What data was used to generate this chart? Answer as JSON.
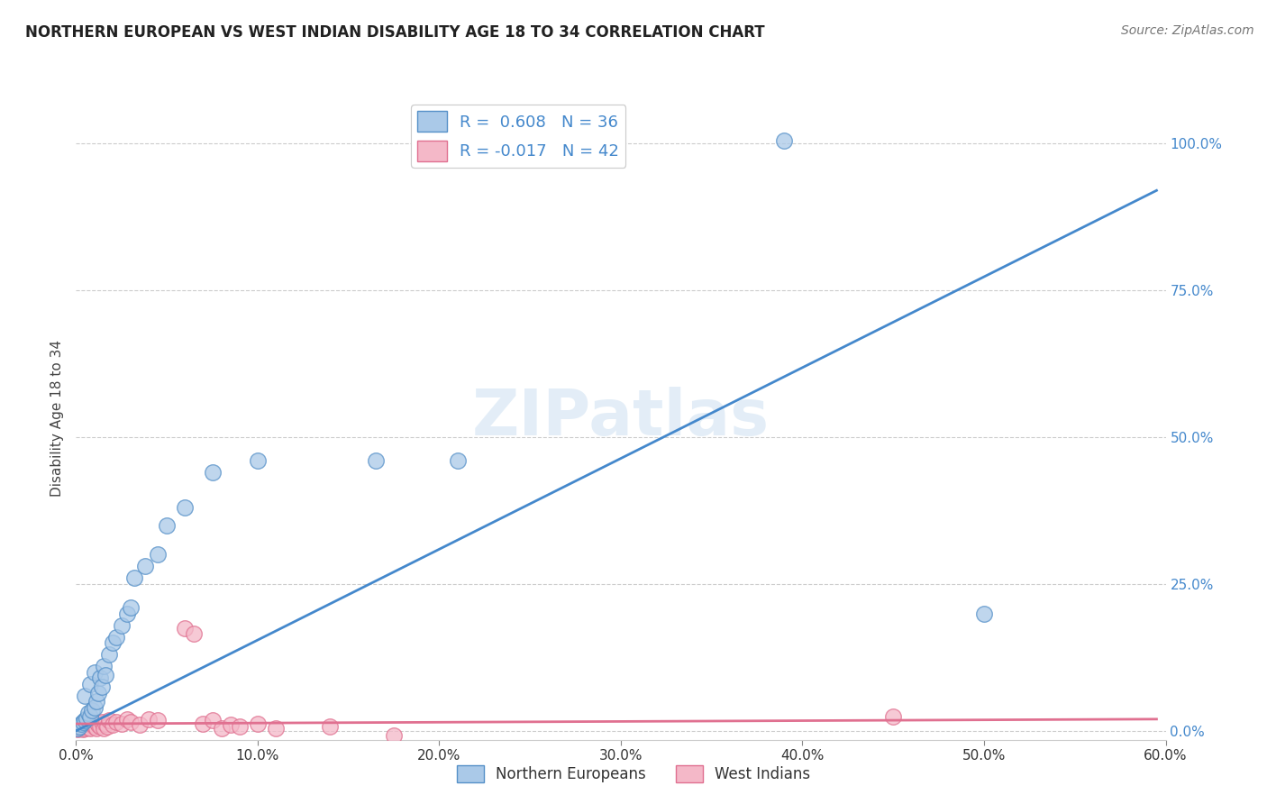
{
  "title": "NORTHERN EUROPEAN VS WEST INDIAN DISABILITY AGE 18 TO 34 CORRELATION CHART",
  "source": "Source: ZipAtlas.com",
  "ylabel": "Disability Age 18 to 34",
  "xlim": [
    0.0,
    0.6
  ],
  "ylim": [
    -0.015,
    1.08
  ],
  "xtick_labels": [
    "0.0%",
    "10.0%",
    "20.0%",
    "30.0%",
    "40.0%",
    "50.0%",
    "60.0%"
  ],
  "xtick_vals": [
    0.0,
    0.1,
    0.2,
    0.3,
    0.4,
    0.5,
    0.6
  ],
  "ytick_labels": [
    "0.0%",
    "25.0%",
    "50.0%",
    "75.0%",
    "100.0%"
  ],
  "ytick_vals": [
    0.0,
    0.25,
    0.5,
    0.75,
    1.0
  ],
  "watermark": "ZIPatlas",
  "legend_blue_label": "Northern Europeans",
  "legend_pink_label": "West Indians",
  "R_blue": 0.608,
  "N_blue": 36,
  "R_pink": -0.017,
  "N_pink": 42,
  "blue_color": "#aac9e8",
  "pink_color": "#f4b8c8",
  "blue_edge_color": "#5590c8",
  "pink_edge_color": "#e07090",
  "blue_line_color": "#4488cc",
  "pink_line_color": "#e07090",
  "grid_color": "#cccccc",
  "blue_scatter_x": [
    0.001,
    0.002,
    0.003,
    0.004,
    0.005,
    0.005,
    0.006,
    0.007,
    0.008,
    0.008,
    0.009,
    0.01,
    0.01,
    0.011,
    0.012,
    0.013,
    0.014,
    0.015,
    0.016,
    0.018,
    0.02,
    0.022,
    0.025,
    0.028,
    0.03,
    0.032,
    0.038,
    0.045,
    0.05,
    0.06,
    0.075,
    0.1,
    0.165,
    0.21,
    0.5,
    0.39
  ],
  "blue_scatter_y": [
    0.005,
    0.008,
    0.012,
    0.015,
    0.018,
    0.06,
    0.022,
    0.03,
    0.025,
    0.08,
    0.035,
    0.04,
    0.1,
    0.05,
    0.065,
    0.09,
    0.075,
    0.11,
    0.095,
    0.13,
    0.15,
    0.16,
    0.18,
    0.2,
    0.21,
    0.26,
    0.28,
    0.3,
    0.35,
    0.38,
    0.44,
    0.46,
    0.46,
    0.46,
    0.2,
    1.005
  ],
  "pink_scatter_x": [
    0.001,
    0.002,
    0.003,
    0.004,
    0.004,
    0.005,
    0.006,
    0.006,
    0.007,
    0.008,
    0.008,
    0.009,
    0.01,
    0.011,
    0.011,
    0.012,
    0.013,
    0.014,
    0.015,
    0.016,
    0.017,
    0.018,
    0.02,
    0.022,
    0.025,
    0.028,
    0.03,
    0.035,
    0.04,
    0.045,
    0.06,
    0.065,
    0.07,
    0.075,
    0.08,
    0.085,
    0.09,
    0.1,
    0.11,
    0.14,
    0.175,
    0.45
  ],
  "pink_scatter_y": [
    0.003,
    0.005,
    0.007,
    0.003,
    0.01,
    0.005,
    0.008,
    0.012,
    0.006,
    0.01,
    0.004,
    0.012,
    0.008,
    0.005,
    0.015,
    0.01,
    0.007,
    0.015,
    0.005,
    0.012,
    0.008,
    0.018,
    0.01,
    0.015,
    0.012,
    0.02,
    0.015,
    0.01,
    0.02,
    0.018,
    0.175,
    0.165,
    0.012,
    0.018,
    0.005,
    0.01,
    0.008,
    0.012,
    0.005,
    0.008,
    -0.008,
    0.025
  ],
  "blue_line_x": [
    0.0,
    0.595
  ],
  "blue_line_y": [
    0.0,
    0.92
  ],
  "pink_line_x": [
    0.0,
    0.595
  ],
  "pink_line_y": [
    0.012,
    0.02
  ]
}
